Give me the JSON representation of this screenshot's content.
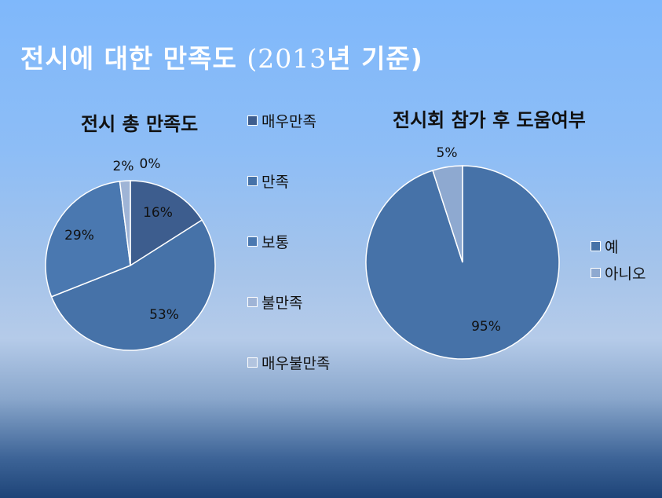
{
  "slide": {
    "title_main": "전시에 대한 만족도 ",
    "title_year": "(2013",
    "title_suffix": "년 기준)"
  },
  "colors": {
    "dark_blue": "#3d5d8e",
    "mid_blue": "#4672a8",
    "light_blue": "#8ea9d0",
    "pale_blue": "#b2c4df"
  },
  "chart_data": [
    {
      "type": "pie",
      "title": "전시 총 만족도",
      "legend_position": "right",
      "categories": [
        "매우만족",
        "만족",
        "보통",
        "불만족",
        "매우불만족"
      ],
      "values": [
        16,
        53,
        29,
        2,
        0
      ],
      "labels": [
        "16%",
        "53%",
        "29%",
        "2%",
        "0%"
      ],
      "colors": [
        "#3d5d8e",
        "#4672a8",
        "#4a78b0",
        "#9fb4d6",
        "#b2c4df"
      ]
    },
    {
      "type": "pie",
      "title": "전시회 참가 후 도움여부",
      "legend_position": "right",
      "categories": [
        "예",
        "아니오"
      ],
      "values": [
        95,
        5
      ],
      "labels": [
        "95%",
        "5%"
      ],
      "colors": [
        "#4672a8",
        "#8ea9d0"
      ]
    }
  ]
}
